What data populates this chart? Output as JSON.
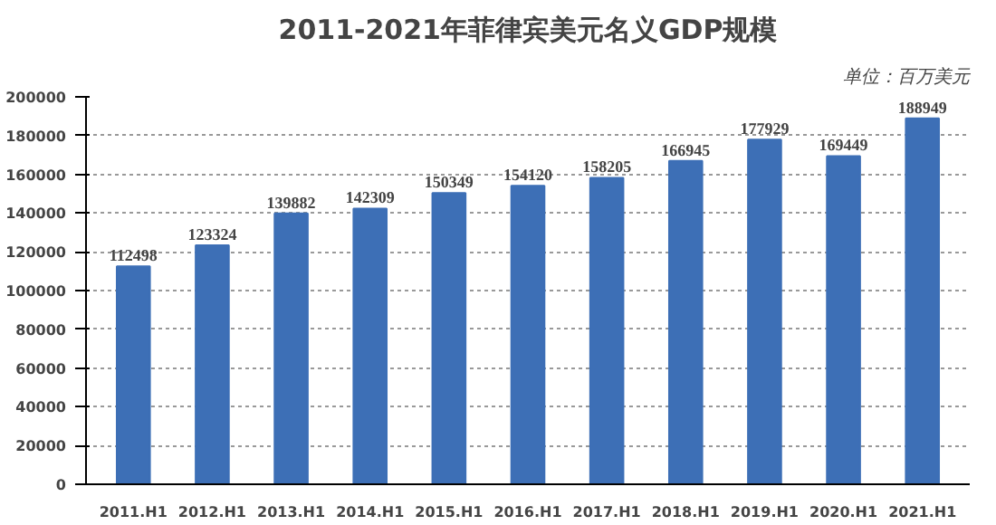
{
  "chart_data": {
    "type": "bar",
    "title": "2011-2021年菲律宾美元名义GDP规模",
    "subtitle": "单位：百万美元",
    "categories": [
      "2011.H1",
      "2012.H1",
      "2013.H1",
      "2014.H1",
      "2015.H1",
      "2016.H1",
      "2017.H1",
      "2018.H1",
      "2019.H1",
      "2020.H1",
      "2021.H1"
    ],
    "values": [
      112498,
      123324,
      139882,
      142309,
      150349,
      154120,
      158205,
      166945,
      177929,
      169449,
      188949
    ],
    "color": "#3d6fb6",
    "ylim": [
      0,
      200000
    ],
    "yticks": [
      0,
      20000,
      40000,
      60000,
      80000,
      100000,
      120000,
      140000,
      160000,
      180000,
      200000
    ],
    "grid": "y",
    "data_labels": true
  }
}
